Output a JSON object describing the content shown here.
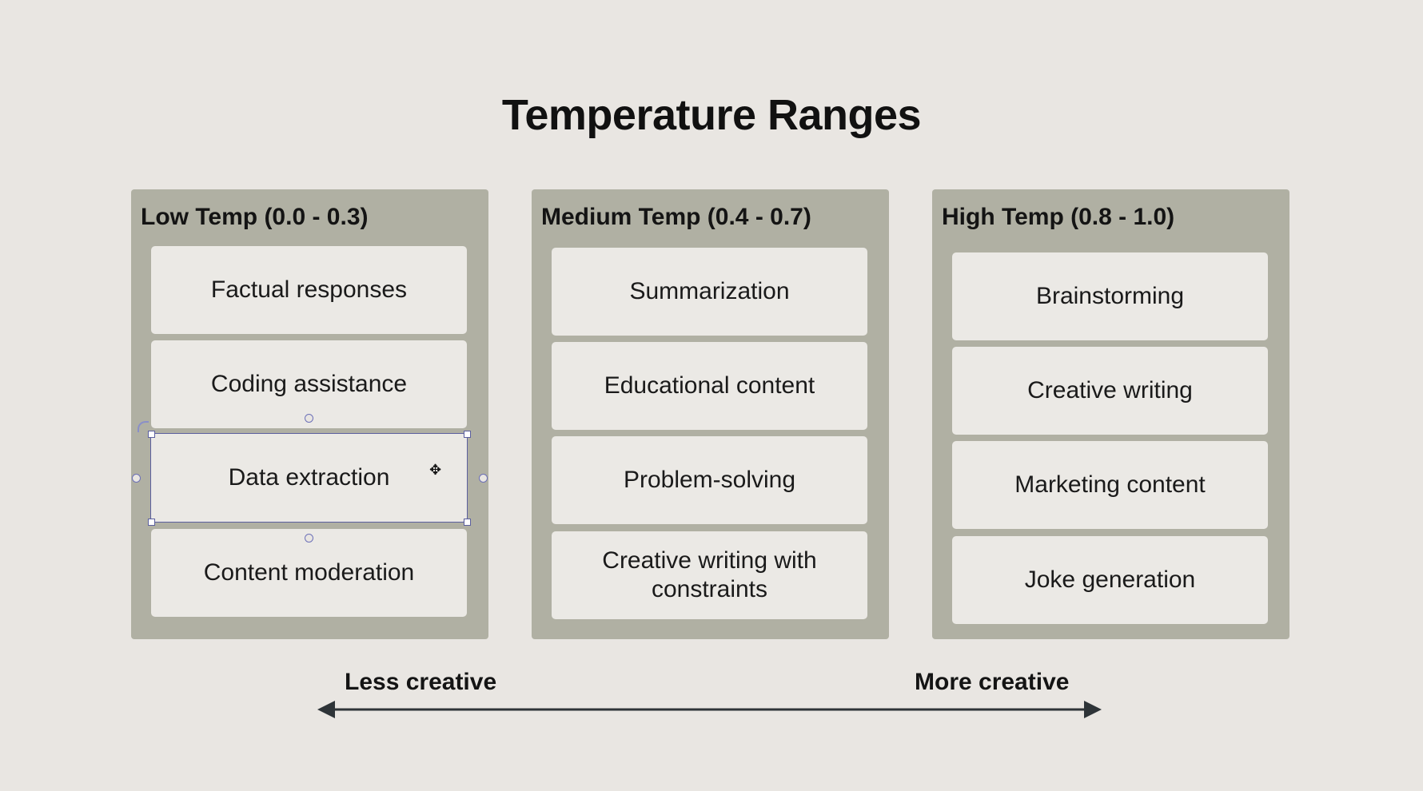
{
  "title": "Temperature Ranges",
  "columns": [
    {
      "heading": "Low Temp (0.0 - 0.3)",
      "items": [
        "Factual responses",
        "Coding assistance",
        "Data extraction",
        "Content moderation"
      ]
    },
    {
      "heading": "Medium Temp (0.4 - 0.7)",
      "items": [
        "Summarization",
        "Educational content",
        "Problem-solving",
        "Creative writing with constraints"
      ]
    },
    {
      "heading": "High Temp (0.8 - 1.0)",
      "items": [
        "Brainstorming",
        "Creative writing",
        "Marketing content",
        "Joke generation"
      ]
    }
  ],
  "scale": {
    "left_label": "Less creative",
    "right_label": "More creative"
  },
  "selection": {
    "selected_item": "Data extraction"
  },
  "colors": {
    "background": "#e9e6e2",
    "column": "#b0b0a3",
    "card": "#ebe9e5",
    "selection": "#5b5f9e",
    "arrow": "#2e3438"
  }
}
